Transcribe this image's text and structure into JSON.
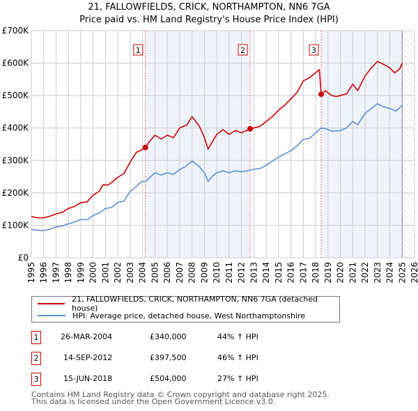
{
  "title": "21, FALLOWFIELDS, CRICK, NORTHAMPTON, NN6 7GA",
  "subtitle": "Price paid vs. HM Land Registry's House Price Index (HPI)",
  "chart_data": {
    "type": "line",
    "title": "21, FALLOWFIELDS, CRICK, NORTHAMPTON, NN6 7GA",
    "subtitle": "Price paid vs. HM Land Registry's House Price Index (HPI)",
    "xlim": [
      1995,
      2026
    ],
    "ylim": [
      0,
      700000
    ],
    "grid": true,
    "x_ticks": [
      "1995",
      "1996",
      "1997",
      "1998",
      "1999",
      "2000",
      "2001",
      "2002",
      "2003",
      "2004",
      "2005",
      "2006",
      "2007",
      "2008",
      "2009",
      "2010",
      "2011",
      "2012",
      "2013",
      "2014",
      "2015",
      "2016",
      "2017",
      "2018",
      "2019",
      "2020",
      "2021",
      "2022",
      "2023",
      "2024",
      "2025",
      "2026"
    ],
    "y_ticks": [
      {
        "value": 0,
        "label": "£0"
      },
      {
        "value": 100000,
        "label": "£100K"
      },
      {
        "value": 200000,
        "label": "£200K"
      },
      {
        "value": 300000,
        "label": "£300K"
      },
      {
        "value": 400000,
        "label": "£400K"
      },
      {
        "value": 500000,
        "label": "£500K"
      },
      {
        "value": 600000,
        "label": "£600K"
      },
      {
        "value": 700000,
        "label": "£700K"
      }
    ],
    "series": [
      {
        "name": "21, FALLOWFIELDS, CRICK, NORTHAMPTON, NN6 7GA (detached house)",
        "color": "#cc0000",
        "x": [
          1995,
          1995.5,
          1996,
          1996.5,
          1997,
          1997.5,
          1998,
          1998.5,
          1999,
          1999.5,
          2000,
          2000.5,
          2000.8,
          2001.2,
          2001.5,
          2002,
          2002.5,
          2003,
          2003.5,
          2003.9,
          2004.23,
          2004.6,
          2005,
          2005.5,
          2006,
          2006.5,
          2007,
          2007.3,
          2007.6,
          2008,
          2008.3,
          2008.6,
          2009,
          2009.3,
          2009.6,
          2010,
          2010.5,
          2011,
          2011.5,
          2012,
          2012.7,
          2013,
          2013.5,
          2014,
          2014.5,
          2015,
          2015.5,
          2016,
          2016.5,
          2017,
          2017.5,
          2018,
          2018.3,
          2018.45,
          2018.8,
          2019.3,
          2019.7,
          2020,
          2020.5,
          2021,
          2021.4,
          2022,
          2022.5,
          2023,
          2023.4,
          2023.8,
          2024,
          2024.4,
          2024.8,
          2025
        ],
        "y": [
          127000,
          123000,
          123000,
          128000,
          135000,
          140000,
          152000,
          158000,
          170000,
          172000,
          193000,
          205000,
          225000,
          224000,
          232000,
          248000,
          260000,
          295000,
          325000,
          332000,
          340000,
          360000,
          378000,
          366000,
          378000,
          370000,
          400000,
          405000,
          410000,
          435000,
          420000,
          405000,
          370000,
          335000,
          355000,
          380000,
          395000,
          380000,
          392000,
          385000,
          397500,
          400000,
          405000,
          420000,
          435000,
          455000,
          470000,
          490000,
          510000,
          545000,
          555000,
          570000,
          580000,
          504000,
          515000,
          500000,
          497000,
          500000,
          505000,
          535000,
          515000,
          560000,
          585000,
          605000,
          598000,
          590000,
          585000,
          570000,
          582000,
          600000
        ]
      },
      {
        "name": "HPI: Average price, detached house, West Northamptonshire",
        "color": "#5b8ed6",
        "x": [
          1995,
          1995.5,
          1996,
          1996.5,
          1997,
          1997.5,
          1998,
          1998.5,
          1999,
          1999.5,
          2000,
          2000.5,
          2001,
          2001.5,
          2002,
          2002.5,
          2003,
          2003.5,
          2003.9,
          2004.23,
          2004.6,
          2005,
          2005.5,
          2006,
          2006.5,
          2007,
          2007.5,
          2008,
          2008.3,
          2008.6,
          2009,
          2009.3,
          2009.6,
          2010,
          2010.5,
          2011,
          2011.5,
          2012,
          2012.7,
          2013,
          2013.5,
          2014,
          2014.5,
          2015,
          2015.5,
          2016,
          2016.5,
          2017,
          2017.5,
          2018,
          2018.45,
          2018.8,
          2019.3,
          2020,
          2020.5,
          2021,
          2021.4,
          2022,
          2022.5,
          2023,
          2023.5,
          2024,
          2024.5,
          2025
        ],
        "y": [
          87000,
          85000,
          84000,
          88000,
          95000,
          98000,
          105000,
          110000,
          118000,
          117000,
          130000,
          138000,
          152000,
          155000,
          170000,
          175000,
          205000,
          220000,
          235000,
          235000,
          248000,
          262000,
          255000,
          262000,
          257000,
          272000,
          282000,
          298000,
          290000,
          280000,
          262000,
          235000,
          250000,
          262000,
          268000,
          262000,
          268000,
          265000,
          270000,
          273000,
          275000,
          285000,
          298000,
          310000,
          320000,
          330000,
          345000,
          365000,
          368000,
          385000,
          400000,
          398000,
          390000,
          392000,
          400000,
          420000,
          410000,
          445000,
          460000,
          475000,
          465000,
          460000,
          452000,
          470000
        ]
      }
    ],
    "sales": [
      {
        "label": "1",
        "x": 2004.23,
        "y": 340000
      },
      {
        "label": "2",
        "x": 2012.7,
        "y": 397500
      },
      {
        "label": "3",
        "x": 2018.45,
        "y": 504000
      }
    ],
    "legend": "bottom"
  },
  "legend": {
    "property": "21, FALLOWFIELDS, CRICK, NORTHAMPTON, NN6 7GA (detached house)",
    "hpi": "HPI: Average price, detached house, West Northamptonshire"
  },
  "sales_table": [
    {
      "num": "1",
      "date": "26-MAR-2004",
      "price": "£340,000",
      "hpi": "44% ↑ HPI"
    },
    {
      "num": "2",
      "date": "14-SEP-2012",
      "price": "£397,500",
      "hpi": "46% ↑ HPI"
    },
    {
      "num": "3",
      "date": "15-JUN-2018",
      "price": "£504,000",
      "hpi": "27% ↑ HPI"
    }
  ],
  "footer": {
    "line1": "Contains HM Land Registry data © Crown copyright and database right 2025.",
    "line2": "This data is licensed under the Open Government Licence v3.0."
  }
}
